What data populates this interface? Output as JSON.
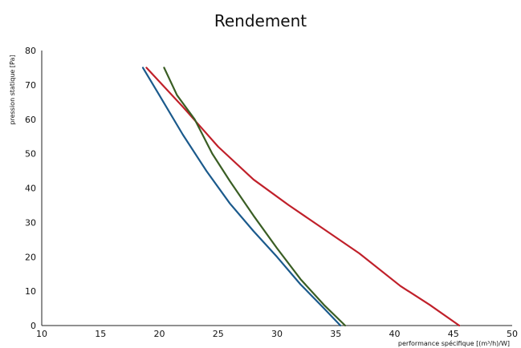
{
  "chart_data": {
    "type": "line",
    "title": "Rendement",
    "xlabel": "performance spécifique [(m³/h)/W]",
    "ylabel": "pression statique [Pa]",
    "xlim": [
      10,
      50
    ],
    "ylim": [
      0,
      80
    ],
    "xticks": [
      10,
      15,
      20,
      25,
      30,
      35,
      40,
      45,
      50
    ],
    "yticks": [
      0,
      10,
      20,
      30,
      40,
      50,
      60,
      70,
      80
    ],
    "grid": false,
    "legend": "none",
    "series": [
      {
        "color": "#c0202a",
        "x": [
          18.9,
          22,
          25,
          28,
          31,
          34,
          37,
          40.5,
          43,
          45.5
        ],
        "y": [
          75,
          63.6,
          52,
          42.5,
          35,
          28,
          21,
          11.5,
          6,
          0
        ]
      },
      {
        "color": "#1b5a8c",
        "x": [
          18.6,
          20,
          22,
          24,
          26,
          28,
          30,
          32,
          34,
          35.4
        ],
        "y": [
          75,
          67,
          55.5,
          45,
          35.5,
          27.5,
          20,
          12,
          5,
          0
        ]
      },
      {
        "color": "#3a5e24",
        "x": [
          20.4,
          21.5,
          23,
          24.5,
          26,
          28,
          30,
          32,
          34,
          35.8
        ],
        "y": [
          75,
          67,
          60,
          50,
          42,
          32,
          22.5,
          13.5,
          6,
          0
        ]
      }
    ]
  }
}
